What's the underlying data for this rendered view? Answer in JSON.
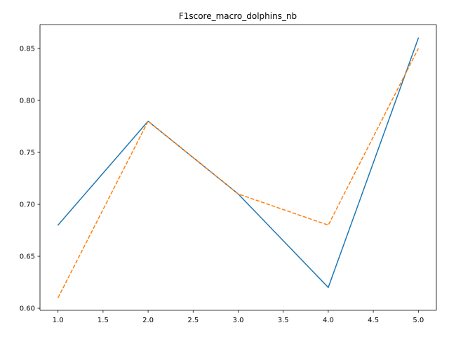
{
  "chart_data": {
    "type": "line",
    "title": "F1score_macro_dolphins_nb",
    "xlabel": "",
    "ylabel": "",
    "xlim": [
      0.8,
      5.2
    ],
    "ylim": [
      0.598,
      0.873
    ],
    "x_ticks": [
      "1.0",
      "1.5",
      "2.0",
      "2.5",
      "3.0",
      "3.5",
      "4.0",
      "4.5",
      "5.0"
    ],
    "y_ticks": [
      "0.60",
      "0.65",
      "0.70",
      "0.75",
      "0.80",
      "0.85"
    ],
    "grid": false,
    "legend": "none",
    "x": [
      1,
      2,
      3,
      4,
      5
    ],
    "series": [
      {
        "values": [
          0.68,
          0.78,
          0.71,
          0.62,
          0.86
        ],
        "color": "#1f77b4",
        "style": "solid"
      },
      {
        "values": [
          0.61,
          0.78,
          0.71,
          0.68,
          0.85
        ],
        "color": "#ff7f0e",
        "style": "dashed"
      }
    ]
  }
}
